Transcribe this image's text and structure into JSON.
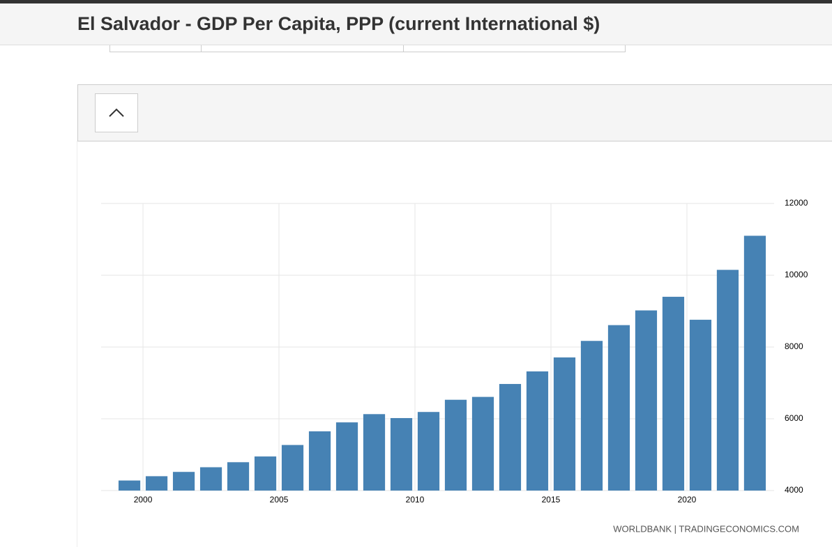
{
  "header": {
    "title": "El Salvador - GDP Per Capita, PPP (current International $)"
  },
  "chart_data": {
    "type": "bar",
    "color": "#4682b4",
    "x": [
      1999,
      2000,
      2001,
      2002,
      2003,
      2004,
      2005,
      2006,
      2007,
      2008,
      2009,
      2010,
      2011,
      2012,
      2013,
      2014,
      2015,
      2016,
      2017,
      2018,
      2019,
      2020,
      2021,
      2022
    ],
    "values": [
      4280,
      4400,
      4520,
      4650,
      4790,
      4950,
      5270,
      5650,
      5900,
      6130,
      6020,
      6190,
      6530,
      6610,
      6970,
      7320,
      7710,
      8170,
      8610,
      9020,
      9400,
      8760,
      10150,
      11100
    ],
    "xlim": [
      1998.46,
      2022.95
    ],
    "xticks": [
      2000,
      2005,
      2010,
      2015,
      2020
    ],
    "ylim": [
      4000,
      12000
    ],
    "yticks": [
      4000,
      6000,
      8000,
      10000,
      12000
    ],
    "grid": true
  },
  "source": "WORLDBANK | TRADINGECONOMICS.COM"
}
